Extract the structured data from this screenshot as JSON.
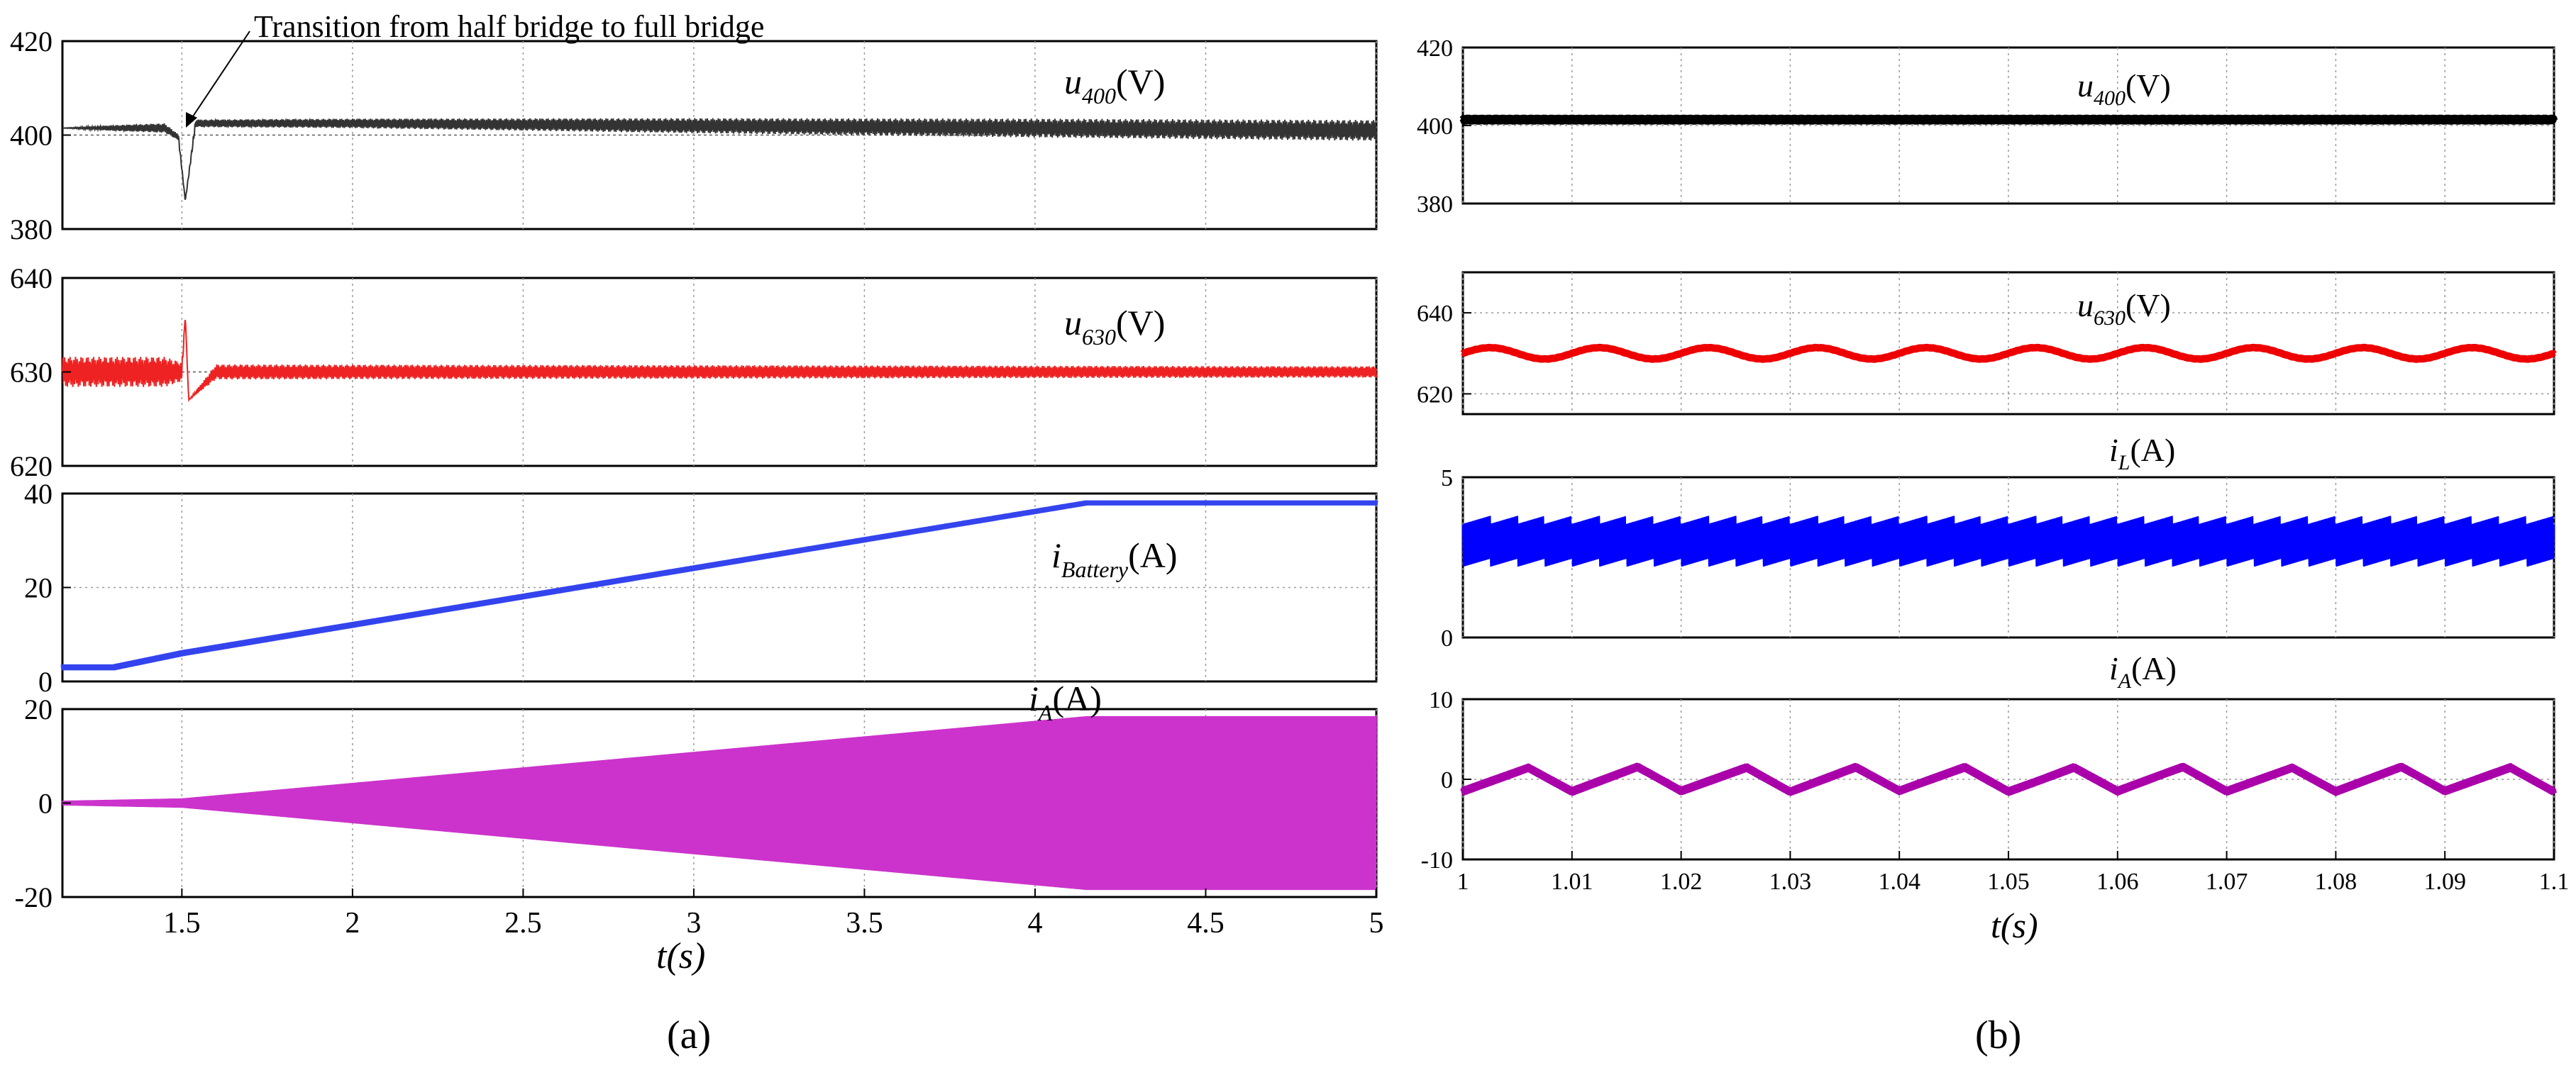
{
  "chart_data": {
    "panel_a": {
      "type": "line",
      "label": "(a)",
      "xlabel": "t(s)",
      "xlim": [
        1.15,
        5
      ],
      "xticks": [
        1.5,
        2,
        2.5,
        3,
        3.5,
        4,
        4.5,
        5
      ],
      "xtick_labels": [
        "1.5",
        "2",
        "2.5",
        "3",
        "3.5",
        "4",
        "4.5",
        "5"
      ],
      "annotation": "Transition from half bridge to full bridge",
      "annotation_x": 1.5,
      "plots": [
        {
          "id": "u400",
          "label_main": "u",
          "label_sub": "400",
          "label_unit": "(V)",
          "color": "#333333",
          "ylim": [
            380,
            420
          ],
          "yticks": [
            380,
            400,
            420
          ],
          "ytick_labels": [
            "380",
            "400",
            "420"
          ],
          "ref_line": 400,
          "series": [
            {
              "x": 1.15,
              "y": 401.5,
              "ripple": 0.0
            },
            {
              "x": 1.3,
              "y": 401.5,
              "ripple": 0.6
            },
            {
              "x": 1.45,
              "y": 401.5,
              "ripple": 1.0
            },
            {
              "x": 1.49,
              "y": 399.5,
              "ripple": 0.6
            },
            {
              "x": 1.51,
              "y": 386.0,
              "ripple": 0.2
            },
            {
              "x": 1.54,
              "y": 402.5,
              "ripple": 0.8
            },
            {
              "x": 2.0,
              "y": 402.5,
              "ripple": 1.0
            },
            {
              "x": 3.0,
              "y": 402.0,
              "ripple": 1.6
            },
            {
              "x": 4.0,
              "y": 401.5,
              "ripple": 2.0
            },
            {
              "x": 5.0,
              "y": 401.0,
              "ripple": 2.2
            }
          ]
        },
        {
          "id": "u630",
          "label_main": "u",
          "label_sub": "630",
          "label_unit": "(V)",
          "color": "#ee2222",
          "ylim": [
            620,
            640
          ],
          "yticks": [
            620,
            630,
            640
          ],
          "ytick_labels": [
            "620",
            "630",
            "640"
          ],
          "ref_line": 630,
          "series": [
            {
              "x": 1.15,
              "y": 630,
              "ripple": 1.6
            },
            {
              "x": 1.45,
              "y": 630,
              "ripple": 1.6
            },
            {
              "x": 1.5,
              "y": 630,
              "ripple": 1.0
            },
            {
              "x": 1.51,
              "y": 636,
              "ripple": 0.0
            },
            {
              "x": 1.52,
              "y": 627,
              "ripple": 0.0
            },
            {
              "x": 1.6,
              "y": 630,
              "ripple": 0.8
            },
            {
              "x": 5.0,
              "y": 630,
              "ripple": 0.6
            }
          ]
        },
        {
          "id": "ibat",
          "label_main": "i",
          "label_sub": "Battery",
          "label_unit": "(A)",
          "color": "#3344ee",
          "ylim": [
            0,
            40
          ],
          "yticks": [
            0,
            20,
            40
          ],
          "ytick_labels": [
            "0",
            "20",
            "40"
          ],
          "ref_line": null,
          "series": [
            {
              "x": 1.15,
              "y": 3,
              "ripple": 1.2
            },
            {
              "x": 1.3,
              "y": 3,
              "ripple": 1.2
            },
            {
              "x": 1.5,
              "y": 6,
              "ripple": 1.2
            },
            {
              "x": 4.15,
              "y": 38,
              "ripple": 1.0
            },
            {
              "x": 5.0,
              "y": 38,
              "ripple": 1.0
            }
          ]
        },
        {
          "id": "iA",
          "label_main": "i",
          "label_sub": "A",
          "label_unit": "(A)",
          "color": "#cc33cc",
          "ylim": [
            -20,
            20
          ],
          "yticks": [
            -20,
            0,
            20
          ],
          "ytick_labels": [
            "-20",
            "0",
            "20"
          ],
          "ref_line": null,
          "series": [
            {
              "x": 1.15,
              "y": 0,
              "amp": 0.5
            },
            {
              "x": 1.5,
              "y": 0,
              "amp": 1.0
            },
            {
              "x": 4.15,
              "y": 0,
              "amp": 18.5
            },
            {
              "x": 5.0,
              "y": 0,
              "amp": 18.5
            }
          ]
        }
      ]
    },
    "panel_b": {
      "type": "line",
      "label": "(b)",
      "xlabel": "t(s)",
      "xlim": [
        1.0,
        1.1
      ],
      "xticks": [
        1,
        1.01,
        1.02,
        1.03,
        1.04,
        1.05,
        1.06,
        1.07,
        1.08,
        1.09,
        1.1
      ],
      "xtick_labels": [
        "1",
        "1.01",
        "1.02",
        "1.03",
        "1.04",
        "1.05",
        "1.06",
        "1.07",
        "1.08",
        "1.09",
        "1.1"
      ],
      "plots": [
        {
          "id": "u400b",
          "label_main": "u",
          "label_sub": "400",
          "label_unit": "(V)",
          "color": "#000000",
          "ylim": [
            380,
            420
          ],
          "yticks": [
            380,
            400,
            420
          ],
          "ytick_labels": [
            "380",
            "400",
            "420"
          ],
          "mean": 401.5,
          "band": 1.0,
          "wave_period": 0.005,
          "wave_amp": 0.0
        },
        {
          "id": "u630b",
          "label_main": "u",
          "label_sub": "630",
          "label_unit": "(V)",
          "color": "#ee0000",
          "ylim": [
            615,
            650
          ],
          "yticks": [
            620,
            640
          ],
          "ytick_labels": [
            "620",
            "640"
          ],
          "mean": 630,
          "band": 0.6,
          "wave_period": 0.01,
          "wave_amp": 1.4
        },
        {
          "id": "iLb",
          "label_main": "i",
          "label_sub": "L",
          "label_unit": "(A)",
          "color": "#0000ff",
          "ylim": [
            0,
            5
          ],
          "yticks": [
            0,
            5
          ],
          "ytick_labels": [
            "0",
            "5"
          ],
          "mean": 3.0,
          "band": 0.65,
          "wave_period": 0.0025,
          "wave_amp": 0.25
        },
        {
          "id": "iAb",
          "label_main": "i",
          "label_sub": "A",
          "label_unit": "(A)",
          "color": "#aa00aa",
          "ylim": [
            -10,
            10
          ],
          "yticks": [
            -10,
            0,
            10
          ],
          "ytick_labels": [
            "-10",
            "0",
            "10"
          ],
          "mean": 0,
          "band": 0.5,
          "wave_period": 0.01,
          "wave_amp": 1.5
        }
      ]
    }
  }
}
